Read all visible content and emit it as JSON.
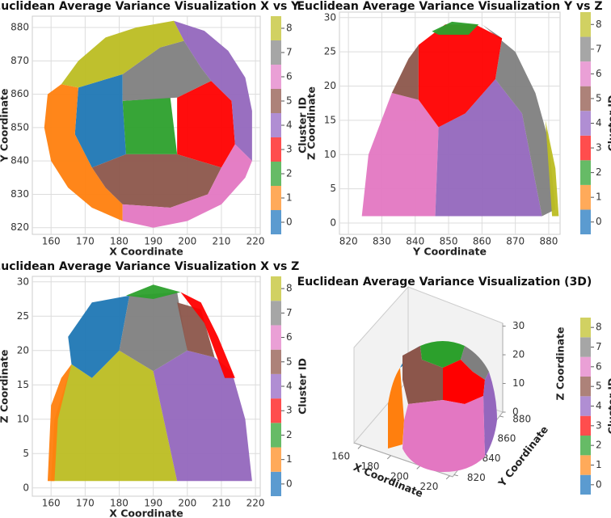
{
  "chart_data": [
    {
      "type": "area",
      "title": "Euclidean Average Variance Visualization X vs Y",
      "xlabel": "X Coordinate",
      "ylabel": "Y Coordinate",
      "xlim": [
        154.5,
        221.4
      ],
      "ylim": [
        818,
        883.4
      ],
      "xticks": [
        160,
        170,
        180,
        190,
        200,
        210,
        220
      ],
      "yticks": [
        820,
        830,
        840,
        850,
        860,
        870,
        880
      ],
      "grid": true,
      "series": [
        {
          "color": "#1f77b4",
          "x": [
            168,
            181,
            181,
            182,
            172,
            167
          ],
          "y": [
            862,
            866,
            858,
            842,
            838,
            848
          ]
        },
        {
          "color": "#ff7f0e",
          "x": [
            159,
            158,
            160,
            165,
            172,
            181,
            181,
            176,
            172,
            167,
            168,
            163
          ],
          "y": [
            860,
            850,
            840,
            832,
            826,
            822,
            827,
            832,
            838,
            848,
            862,
            863
          ]
        },
        {
          "color": "#2ca02c",
          "x": [
            181,
            195,
            197,
            182
          ],
          "y": [
            858,
            859,
            842,
            842
          ]
        },
        {
          "color": "#ff0000",
          "x": [
            197,
            207,
            213,
            214,
            210,
            197
          ],
          "y": [
            859,
            864,
            858,
            845,
            838,
            842
          ]
        },
        {
          "color": "#9467bd",
          "x": [
            196,
            205,
            212,
            217,
            219,
            219,
            214,
            213,
            207,
            204,
            199
          ],
          "y": [
            882,
            879,
            873,
            865,
            855,
            840,
            845,
            858,
            864,
            868,
            876
          ]
        },
        {
          "color": "#8c564b",
          "x": [
            172,
            182,
            197,
            210,
            206,
            195,
            181,
            176
          ],
          "y": [
            838,
            842,
            842,
            838,
            830,
            826,
            827,
            832
          ]
        },
        {
          "color": "#e377c2",
          "x": [
            181,
            190,
            200,
            210,
            217,
            219,
            214,
            210,
            206,
            195,
            181
          ],
          "y": [
            822,
            820,
            822,
            827,
            835,
            840,
            845,
            838,
            830,
            826,
            827
          ]
        },
        {
          "color": "#7f7f7f",
          "x": [
            181,
            192,
            199,
            204,
            207,
            197,
            181
          ],
          "y": [
            866,
            874,
            876,
            868,
            864,
            859,
            858
          ]
        },
        {
          "color": "#bcbd22",
          "x": [
            163,
            168,
            176,
            185,
            196,
            199,
            192,
            181,
            168
          ],
          "y": [
            863,
            870,
            877,
            880,
            882,
            876,
            874,
            866,
            862
          ]
        }
      ],
      "colorbar": {
        "label": "Cluster ID",
        "ticks": [
          0,
          1,
          2,
          3,
          4,
          5,
          6,
          7,
          8
        ],
        "colors": [
          "#5b9bd0",
          "#ffaa5a",
          "#66bb66",
          "#ff4d4d",
          "#b08ed3",
          "#ad8279",
          "#eaa0d6",
          "#a6a6a6",
          "#d1d162"
        ]
      }
    },
    {
      "type": "area",
      "title": "Euclidean Average Variance Visualization Y vs Z",
      "xlabel": "Y Coordinate",
      "ylabel": "Z Coordinate",
      "xlim": [
        817.3,
        883.4
      ],
      "ylim": [
        -1.65,
        30.8
      ],
      "xticks": [
        820,
        830,
        840,
        850,
        860,
        870,
        880
      ],
      "yticks": [
        0,
        5,
        10,
        15,
        20,
        25,
        30
      ],
      "grid": true,
      "series": [
        {
          "color": "#e377c2",
          "x": [
            824,
            826,
            833,
            841,
            847,
            846
          ],
          "y": [
            1,
            10,
            19,
            18,
            14,
            1
          ]
        },
        {
          "color": "#9467bd",
          "x": [
            846,
            847,
            855,
            864,
            872,
            878
          ],
          "y": [
            1,
            14,
            16,
            21,
            16,
            1
          ]
        },
        {
          "color": "#8c564b",
          "x": [
            833,
            838,
            841,
            841
          ],
          "y": [
            19,
            24,
            26,
            18
          ]
        },
        {
          "color": "#7f7f7f",
          "x": [
            860,
            870,
            876,
            880,
            882,
            878,
            872,
            864,
            866
          ],
          "y": [
            29,
            25,
            19,
            12,
            2,
            1,
            16,
            21,
            27
          ]
        },
        {
          "color": "#bcbd22",
          "x": [
            879,
            882,
            883,
            881
          ],
          "y": [
            15,
            8,
            1,
            1
          ]
        },
        {
          "color": "#ff0000",
          "x": [
            841,
            849,
            858,
            866,
            864,
            855,
            847,
            841
          ],
          "y": [
            26,
            29,
            29,
            27,
            21,
            16,
            14,
            18
          ]
        },
        {
          "color": "#2ca02c",
          "x": [
            845,
            851,
            859,
            856,
            847
          ],
          "y": [
            28,
            29.4,
            29,
            27.5,
            27.5
          ]
        }
      ],
      "colorbar": {
        "label": "Cluster ID",
        "ticks": [
          0,
          1,
          2,
          3,
          4,
          5,
          6,
          7,
          8
        ],
        "colors": [
          "#5b9bd0",
          "#ffaa5a",
          "#66bb66",
          "#ff4d4d",
          "#b08ed3",
          "#ad8279",
          "#eaa0d6",
          "#a6a6a6",
          "#d1d162"
        ]
      }
    },
    {
      "type": "area",
      "title": "Euclidean Average Variance Visualization X vs Z",
      "xlabel": "X Coordinate",
      "ylabel": "Z Coordinate",
      "xlim": [
        154.5,
        221.4
      ],
      "ylim": [
        -1.2,
        30.8
      ],
      "xticks": [
        160,
        170,
        180,
        190,
        200,
        210,
        220
      ],
      "yticks": [
        0,
        5,
        10,
        15,
        20,
        25,
        30
      ],
      "grid": true,
      "series": [
        {
          "color": "#bcbd22",
          "x": [
            160,
            161,
            166,
            172,
            180,
            190,
            197
          ],
          "y": [
            1,
            10,
            18,
            16,
            20,
            17,
            1
          ]
        },
        {
          "color": "#9467bd",
          "x": [
            197,
            190,
            200,
            208,
            213,
            217,
            219
          ],
          "y": [
            1,
            17,
            20,
            19,
            17,
            10,
            1
          ]
        },
        {
          "color": "#ff7f0e",
          "x": [
            159,
            160,
            163,
            166,
            162,
            161
          ],
          "y": [
            1,
            12,
            16,
            18,
            10,
            1
          ]
        },
        {
          "color": "#1f77b4",
          "x": [
            165,
            172,
            183,
            180,
            172,
            166
          ],
          "y": [
            22,
            27,
            28,
            20,
            16,
            18
          ]
        },
        {
          "color": "#7f7f7f",
          "x": [
            183,
            197,
            200,
            190,
            180
          ],
          "y": [
            28,
            28.5,
            20,
            17,
            20
          ]
        },
        {
          "color": "#8c564b",
          "x": [
            197,
            204,
            208,
            200
          ],
          "y": [
            27,
            26,
            19,
            20
          ]
        },
        {
          "color": "#ff0000",
          "x": [
            198,
            204,
            209,
            214,
            211,
            205
          ],
          "y": [
            28.5,
            27,
            22,
            16,
            16,
            24
          ]
        },
        {
          "color": "#2ca02c",
          "x": [
            182,
            190,
            198,
            190
          ],
          "y": [
            28,
            29.6,
            28.5,
            27.5
          ]
        }
      ],
      "colorbar": {
        "label": "Cluster ID",
        "ticks": [
          0,
          1,
          2,
          3,
          4,
          5,
          6,
          7,
          8
        ],
        "colors": [
          "#5b9bd0",
          "#ffaa5a",
          "#66bb66",
          "#ff4d4d",
          "#b08ed3",
          "#ad8279",
          "#eaa0d6",
          "#a6a6a6",
          "#d1d162"
        ]
      }
    },
    {
      "type": "scatter3d",
      "title": "Euclidean Average Variance Visualization (3D)",
      "xlabel": "X Coordinate",
      "ylabel": "Y Coordinate",
      "zlabel": "Z Coordinate",
      "xlim": [
        155,
        222
      ],
      "ylim": [
        818,
        884
      ],
      "zlim": [
        0,
        31
      ],
      "xticks": [
        160,
        180,
        200,
        220
      ],
      "yticks": [
        820,
        840,
        860,
        880
      ],
      "zticks": [
        0,
        10,
        20,
        30
      ],
      "colorbar": {
        "label": "Cluster ID",
        "ticks": [
          0,
          1,
          2,
          3,
          4,
          5,
          6,
          7,
          8
        ],
        "colors": [
          "#5b9bd0",
          "#ffaa5a",
          "#66bb66",
          "#ff4d4d",
          "#b08ed3",
          "#ad8279",
          "#eaa0d6",
          "#a6a6a6",
          "#d1d162"
        ]
      }
    }
  ]
}
